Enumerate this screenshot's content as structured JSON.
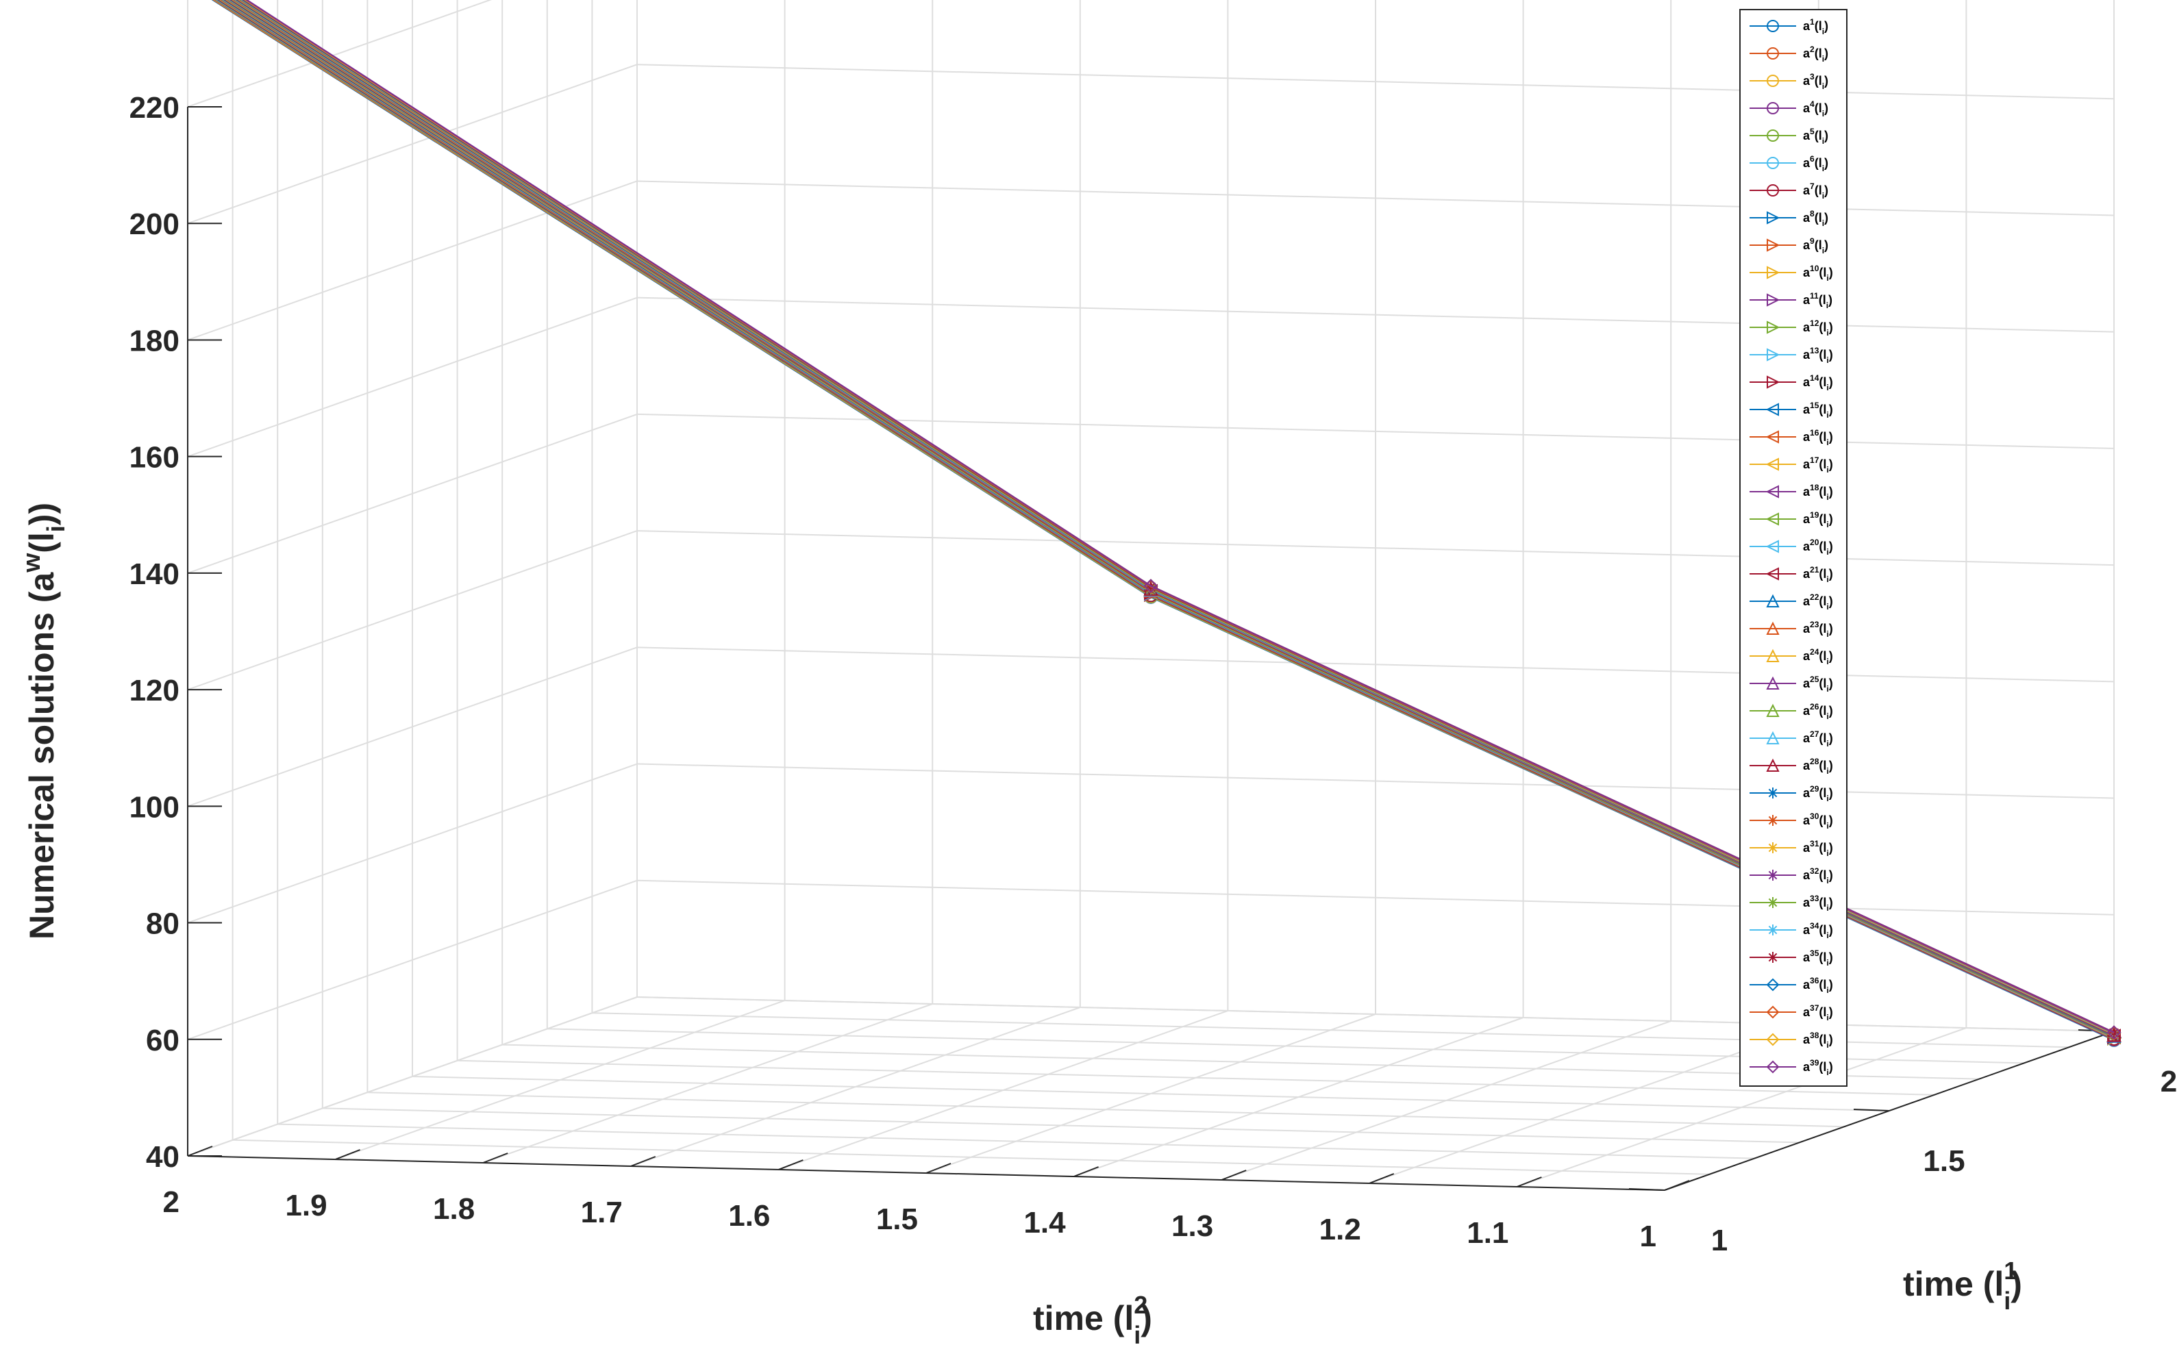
{
  "chart_data": {
    "type": "line",
    "view": "3d",
    "zlabel": {
      "main": "Numerical solutions (a",
      "sup": "w",
      "mid": "(l",
      "sub": "i",
      "end": "))"
    },
    "xlabel": {
      "main": "time (l",
      "sup": "2",
      "sub": "i",
      "end": ")"
    },
    "ylabel": {
      "main": "time (l",
      "sup": "1",
      "sub": "i",
      "end": ")"
    },
    "xlim": [
      1,
      2
    ],
    "ylim": [
      1,
      2
    ],
    "zlim": [
      40,
      220
    ],
    "x_ticks": [
      "2",
      "1.9",
      "1.8",
      "1.7",
      "1.6",
      "1.5",
      "1.4",
      "1.3",
      "1.2",
      "1.1",
      "1"
    ],
    "y_ticks": [
      "1",
      "1.5",
      "2"
    ],
    "z_ticks": [
      "40",
      "60",
      "80",
      "100",
      "120",
      "140",
      "160",
      "180",
      "200",
      "220"
    ],
    "grid": true,
    "legend_position": "top-right",
    "legend_entry_format": {
      "base": "a",
      "arg": "(l",
      "sub": "i",
      "end": ")"
    },
    "points_x": [
      2,
      1.5,
      1
    ],
    "points_y": [
      1,
      1.5,
      2
    ],
    "series": [
      {
        "name": "1",
        "marker": "o",
        "color": "#0072BD",
        "values": [
          241.1,
          125.2,
          38.5
        ]
      },
      {
        "name": "2",
        "marker": "o",
        "color": "#D95319",
        "values": [
          241.2,
          125.3,
          38.6
        ]
      },
      {
        "name": "3",
        "marker": "o",
        "color": "#EDB120",
        "values": [
          241.3,
          125.3,
          38.6
        ]
      },
      {
        "name": "4",
        "marker": "o",
        "color": "#7E2F8E",
        "values": [
          241.4,
          125.4,
          38.6
        ]
      },
      {
        "name": "5",
        "marker": "o",
        "color": "#77AC30",
        "values": [
          241.5,
          125.4,
          38.7
        ]
      },
      {
        "name": "6",
        "marker": "o",
        "color": "#4DBEEE",
        "values": [
          241.6,
          125.5,
          38.7
        ]
      },
      {
        "name": "7",
        "marker": "o",
        "color": "#A2142F",
        "values": [
          241.7,
          125.5,
          38.7
        ]
      },
      {
        "name": "8",
        "marker": ">",
        "color": "#0072BD",
        "values": [
          241.8,
          125.6,
          38.8
        ]
      },
      {
        "name": "9",
        "marker": ">",
        "color": "#D95319",
        "values": [
          241.9,
          125.6,
          38.8
        ]
      },
      {
        "name": "10",
        "marker": ">",
        "color": "#EDB120",
        "values": [
          242.0,
          125.7,
          38.8
        ]
      },
      {
        "name": "11",
        "marker": ">",
        "color": "#7E2F8E",
        "values": [
          242.1,
          125.7,
          38.9
        ]
      },
      {
        "name": "12",
        "marker": ">",
        "color": "#77AC30",
        "values": [
          242.2,
          125.8,
          38.9
        ]
      },
      {
        "name": "13",
        "marker": ">",
        "color": "#4DBEEE",
        "values": [
          242.3,
          125.8,
          38.9
        ]
      },
      {
        "name": "14",
        "marker": ">",
        "color": "#A2142F",
        "values": [
          242.4,
          125.9,
          39.0
        ]
      },
      {
        "name": "15",
        "marker": "<",
        "color": "#0072BD",
        "values": [
          242.5,
          125.9,
          39.0
        ]
      },
      {
        "name": "16",
        "marker": "<",
        "color": "#D95319",
        "values": [
          242.6,
          126.0,
          39.0
        ]
      },
      {
        "name": "17",
        "marker": "<",
        "color": "#EDB120",
        "values": [
          242.7,
          126.0,
          39.1
        ]
      },
      {
        "name": "18",
        "marker": "<",
        "color": "#7E2F8E",
        "values": [
          242.8,
          126.1,
          39.1
        ]
      },
      {
        "name": "19",
        "marker": "<",
        "color": "#77AC30",
        "values": [
          242.9,
          126.1,
          39.1
        ]
      },
      {
        "name": "20",
        "marker": "<",
        "color": "#4DBEEE",
        "values": [
          243.0,
          126.2,
          39.2
        ]
      },
      {
        "name": "21",
        "marker": "<",
        "color": "#A2142F",
        "values": [
          243.1,
          126.2,
          39.2
        ]
      },
      {
        "name": "22",
        "marker": "^",
        "color": "#0072BD",
        "values": [
          243.2,
          126.3,
          39.2
        ]
      },
      {
        "name": "23",
        "marker": "^",
        "color": "#D95319",
        "values": [
          243.3,
          126.3,
          39.3
        ]
      },
      {
        "name": "24",
        "marker": "^",
        "color": "#EDB120",
        "values": [
          243.4,
          126.4,
          39.3
        ]
      },
      {
        "name": "25",
        "marker": "^",
        "color": "#7E2F8E",
        "values": [
          243.5,
          126.4,
          39.3
        ]
      },
      {
        "name": "26",
        "marker": "^",
        "color": "#77AC30",
        "values": [
          243.6,
          126.5,
          39.4
        ]
      },
      {
        "name": "27",
        "marker": "^",
        "color": "#4DBEEE",
        "values": [
          243.7,
          126.5,
          39.4
        ]
      },
      {
        "name": "28",
        "marker": "^",
        "color": "#A2142F",
        "values": [
          243.8,
          126.6,
          39.4
        ]
      },
      {
        "name": "29",
        "marker": "*",
        "color": "#0072BD",
        "values": [
          243.9,
          126.6,
          39.5
        ]
      },
      {
        "name": "30",
        "marker": "*",
        "color": "#D95319",
        "values": [
          244.0,
          126.7,
          39.5
        ]
      },
      {
        "name": "31",
        "marker": "*",
        "color": "#EDB120",
        "values": [
          244.1,
          126.7,
          39.5
        ]
      },
      {
        "name": "32",
        "marker": "*",
        "color": "#7E2F8E",
        "values": [
          244.2,
          126.8,
          39.6
        ]
      },
      {
        "name": "33",
        "marker": "*",
        "color": "#77AC30",
        "values": [
          244.3,
          126.8,
          39.6
        ]
      },
      {
        "name": "34",
        "marker": "*",
        "color": "#4DBEEE",
        "values": [
          244.4,
          126.9,
          39.6
        ]
      },
      {
        "name": "35",
        "marker": "*",
        "color": "#A2142F",
        "values": [
          244.5,
          126.9,
          39.7
        ]
      },
      {
        "name": "36",
        "marker": "d",
        "color": "#0072BD",
        "values": [
          244.6,
          127.0,
          39.7
        ]
      },
      {
        "name": "37",
        "marker": "d",
        "color": "#D95319",
        "values": [
          244.7,
          127.0,
          39.7
        ]
      },
      {
        "name": "38",
        "marker": "d",
        "color": "#EDB120",
        "values": [
          244.8,
          127.1,
          39.8
        ]
      },
      {
        "name": "39",
        "marker": "d",
        "color": "#7E2F8E",
        "values": [
          244.9,
          127.1,
          39.8
        ]
      }
    ]
  },
  "colors": {
    "axis": "#262626",
    "grid": "#dedede",
    "background": "#ffffff",
    "legend_border": "#262626"
  }
}
